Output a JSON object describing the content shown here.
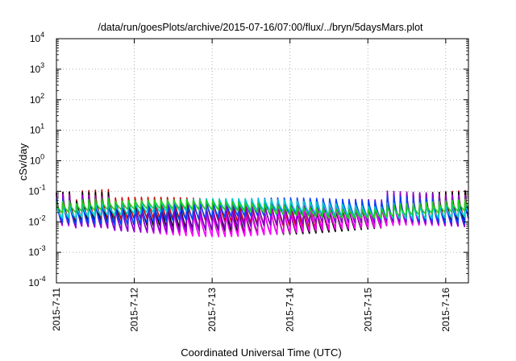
{
  "chart_data": {
    "type": "line",
    "title": "/data/run/goesPlots/archive/2015-07-16/07:00/flux/../bryn/5daysMars.plot",
    "xlabel": "Coordinated Universal Time (UTC)",
    "ylabel": "cSv/day",
    "y_scale": "log",
    "ylim_exponents": [
      -4,
      4
    ],
    "y_tick_labels": [
      {
        "base": "10",
        "exp": "-4"
      },
      {
        "base": "10",
        "exp": "-3"
      },
      {
        "base": "10",
        "exp": "-2"
      },
      {
        "base": "10",
        "exp": "-1"
      },
      {
        "base": "10",
        "exp": "0"
      },
      {
        "base": "10",
        "exp": "1"
      },
      {
        "base": "10",
        "exp": "2"
      },
      {
        "base": "10",
        "exp": "3"
      },
      {
        "base": "10",
        "exp": "4"
      }
    ],
    "x_tick_labels": [
      "2015-7-11",
      "2015-7-12",
      "2015-7-13",
      "2015-7-14",
      "2015-7-15",
      "2015-7-16"
    ],
    "xlim_days": [
      "2015-7-11",
      "2015-7-16 07:00"
    ],
    "grid": true,
    "cycle_period_hours": 2,
    "series": [
      {
        "color": "#cc0000",
        "values": [
          0.009,
          0.09
        ]
      },
      {
        "color": "#000000",
        "values": [
          0.006,
          0.07
        ]
      },
      {
        "color": "#ff00ff",
        "values": [
          0.005,
          0.06
        ]
      },
      {
        "color": "#8800cc",
        "values": [
          0.007,
          0.08
        ]
      },
      {
        "color": "#0044ff",
        "values": [
          0.012,
          0.075
        ]
      },
      {
        "color": "#00cccc",
        "values": [
          0.018,
          0.06
        ]
      },
      {
        "color": "#22cc22",
        "values": [
          0.02,
          0.05
        ]
      }
    ]
  }
}
